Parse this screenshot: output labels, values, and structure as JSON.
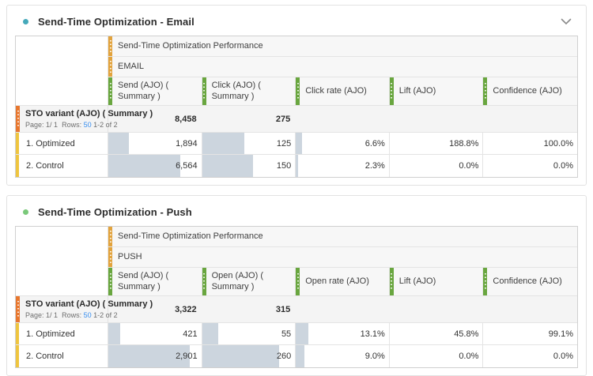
{
  "colors": {
    "email_dot": "#45A9BA",
    "push_dot": "#7AC97A",
    "gold_strip": "#E2A33D",
    "green_strip": "#69A63F",
    "orange_strip": "#E8772E",
    "yellow_strip": "#EFC53F",
    "bar_fill": "#CCD5DE",
    "link_blue": "#378EF0"
  },
  "panels": [
    {
      "title": "Send-Time Optimization - Email",
      "chevron_icon": "chevron-down",
      "table": {
        "performance_header": "Send-Time Optimization Performance",
        "channel": "EMAIL",
        "columns": [
          "Send (AJO) ( Summary )",
          "Click (AJO) ( Summary )",
          "Click rate (AJO)",
          "Lift (AJO)",
          "Confidence (AJO)"
        ],
        "row_dimension": "STO variant (AJO) ( Summary )",
        "pagination": {
          "page_label": "Page:",
          "page_value": "1/ 1",
          "rows_label": "Rows:",
          "rows_per_page": "50",
          "range": "1-2 of 2"
        },
        "summary": {
          "values": [
            "8,458",
            "275",
            "",
            "",
            ""
          ]
        },
        "rows": [
          {
            "label": "1. Optimized",
            "values": [
              "1,894",
              "125",
              "6.6%",
              "188.8%",
              "100.0%"
            ],
            "bar_pct": [
              22.4,
              45.5,
              6.6,
              0,
              0
            ]
          },
          {
            "label": "2. Control",
            "values": [
              "6,564",
              "150",
              "2.3%",
              "0.0%",
              "0.0%"
            ],
            "bar_pct": [
              77.6,
              54.5,
              2.3,
              0,
              0
            ]
          }
        ]
      }
    },
    {
      "title": "Send-Time Optimization - Push",
      "table": {
        "performance_header": "Send-Time Optimization Performance",
        "channel": "PUSH",
        "columns": [
          "Send (AJO) ( Summary )",
          "Open (AJO) ( Summary )",
          "Open rate (AJO)",
          "Lift (AJO)",
          "Confidence (AJO)"
        ],
        "row_dimension": "STO variant (AJO) ( Summary )",
        "pagination": {
          "page_label": "Page:",
          "page_value": "1/ 1",
          "rows_label": "Rows:",
          "rows_per_page": "50",
          "range": "1-2 of 2"
        },
        "summary": {
          "values": [
            "3,322",
            "315",
            "",
            "",
            ""
          ]
        },
        "rows": [
          {
            "label": "1. Optimized",
            "values": [
              "421",
              "55",
              "13.1%",
              "45.8%",
              "99.1%"
            ],
            "bar_pct": [
              12.7,
              17.5,
              13.1,
              0,
              0
            ]
          },
          {
            "label": "2. Control",
            "values": [
              "2,901",
              "260",
              "9.0%",
              "0.0%",
              "0.0%"
            ],
            "bar_pct": [
              87.3,
              82.5,
              9.0,
              0,
              0
            ]
          }
        ]
      }
    }
  ]
}
